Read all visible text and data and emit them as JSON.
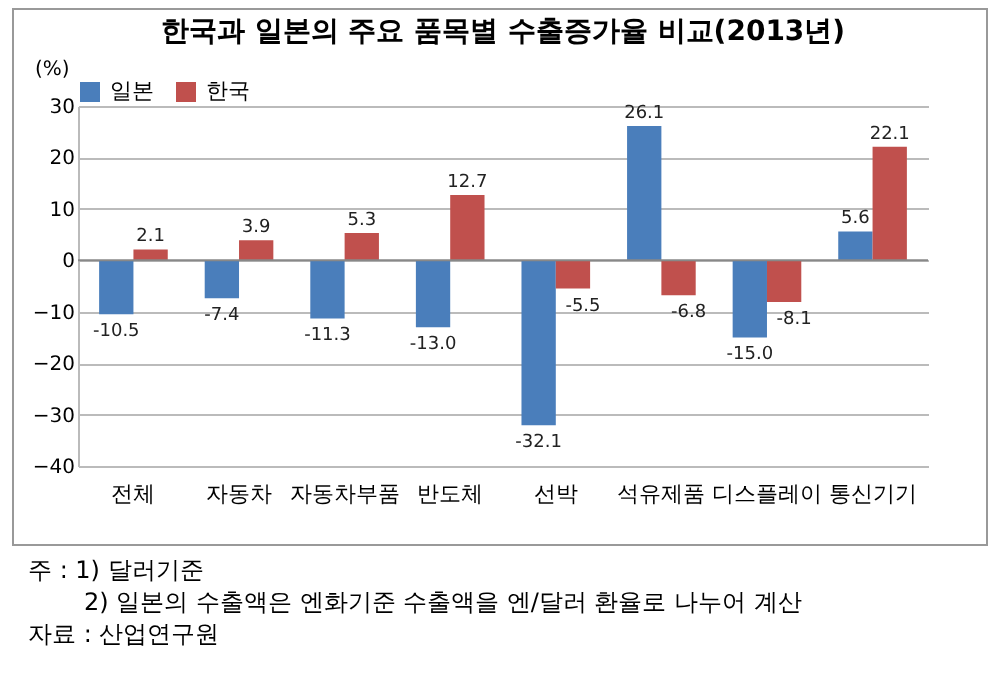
{
  "chart_data": {
    "type": "bar",
    "title": "한국과 일본의 주요 품목별 수출증가율 비교(2013년)",
    "ylabel": "(%)",
    "categories": [
      "전체",
      "자동차",
      "자동차부품",
      "반도체",
      "선박",
      "석유제품",
      "디스플레이",
      "통신기기"
    ],
    "series": [
      {
        "name": "일본",
        "color": "#4a7ebb",
        "values": [
          -10.5,
          -7.4,
          -11.3,
          -13.0,
          -32.1,
          26.1,
          -15.0,
          5.6
        ],
        "value_labels": [
          "-10.5",
          "-7.4",
          "-11.3",
          "-13.0",
          "-32.1",
          "26.1",
          "-15.0",
          "5.6"
        ]
      },
      {
        "name": "한국",
        "color": "#c0504d",
        "values": [
          2.1,
          3.9,
          5.3,
          12.7,
          -5.5,
          -6.8,
          -8.1,
          22.1
        ],
        "value_labels": [
          "2.1",
          "3.9",
          "5.3",
          "12.7",
          "-5.5",
          "-6.8",
          "-8.1",
          "22.1"
        ]
      }
    ],
    "ylim": [
      -40,
      30
    ],
    "yticks": [
      -40,
      -30,
      -20,
      -10,
      0,
      10,
      20,
      30
    ],
    "grid": "y",
    "legend": "top",
    "annotations": [
      "주 : 1) 달러기준",
      "2) 일본의 수출액은 엔화기준 수출액을 엔/달러 환율로 나누어 계산",
      "자료 : 산업연구원"
    ]
  }
}
